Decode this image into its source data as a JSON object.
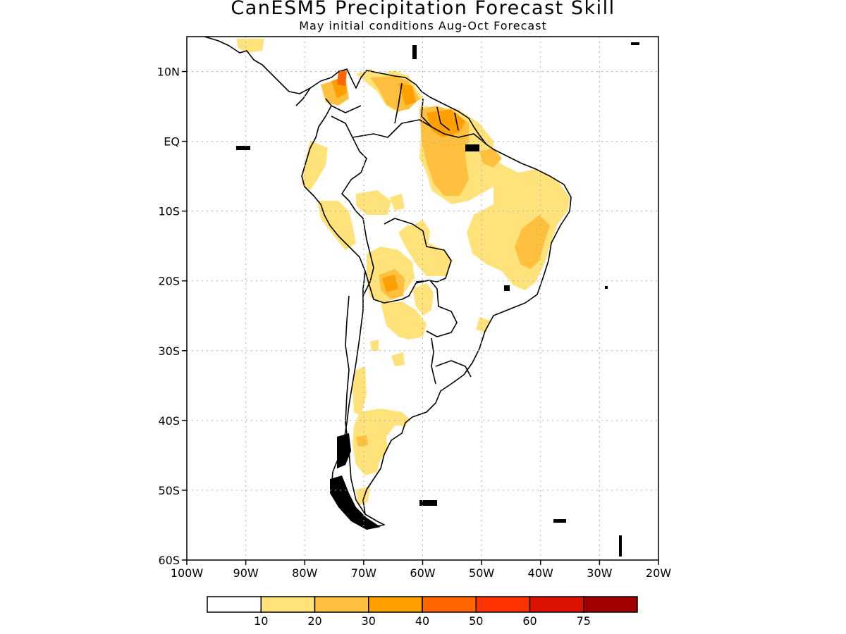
{
  "title": "CanESM5 Precipitation Forecast Skill",
  "subtitle": "May initial conditions  Aug-Oct Forecast",
  "map": {
    "lon_range": [
      -100,
      -20
    ],
    "lat_range": [
      -60,
      15
    ],
    "grid": "dotted",
    "y_ticks": [
      {
        "lat": 10,
        "label": "10N"
      },
      {
        "lat": 0,
        "label": "EQ"
      },
      {
        "lat": -10,
        "label": "10S"
      },
      {
        "lat": -20,
        "label": "20S"
      },
      {
        "lat": -30,
        "label": "30S"
      },
      {
        "lat": -40,
        "label": "40S"
      },
      {
        "lat": -50,
        "label": "50S"
      },
      {
        "lat": -60,
        "label": "60S"
      }
    ],
    "x_ticks": [
      {
        "lon": -100,
        "label": "100W"
      },
      {
        "lon": -90,
        "label": "90W"
      },
      {
        "lon": -80,
        "label": "80W"
      },
      {
        "lon": -70,
        "label": "70W"
      },
      {
        "lon": -60,
        "label": "60W"
      },
      {
        "lon": -50,
        "label": "50W"
      },
      {
        "lon": -40,
        "label": "40W"
      },
      {
        "lon": -30,
        "label": "30W"
      },
      {
        "lon": -20,
        "label": "20W"
      }
    ]
  },
  "colorbar": {
    "colors": [
      "#ffffff",
      "#ffe27a",
      "#ffc040",
      "#ffa000",
      "#ff6600",
      "#ff3300",
      "#dd1100",
      "#a00000"
    ],
    "labels": [
      "10",
      "20",
      "30",
      "40",
      "50",
      "60",
      "75"
    ]
  }
}
